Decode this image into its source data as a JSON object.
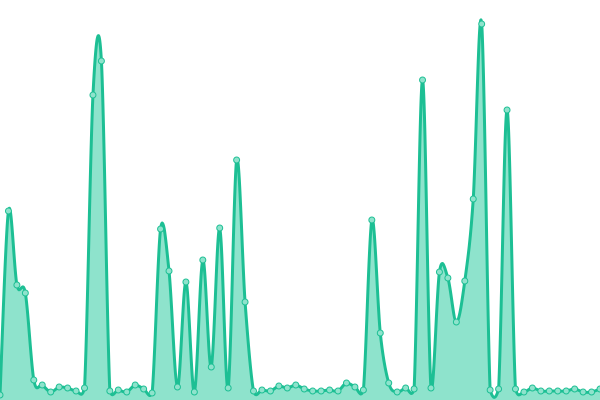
{
  "chart_data": {
    "type": "area",
    "values": [
      5,
      189,
      115,
      107,
      20,
      15,
      8,
      13,
      12,
      9,
      12,
      305,
      339,
      9,
      10,
      8,
      15,
      11,
      7,
      171,
      129,
      13,
      118,
      8,
      140,
      33,
      172,
      12,
      240,
      98,
      9,
      10,
      9,
      14,
      12,
      15,
      11,
      9,
      9,
      10,
      9,
      17,
      13,
      10,
      180,
      67,
      17,
      8,
      12,
      11,
      320,
      12,
      128,
      122,
      78,
      119,
      201,
      376,
      10,
      11,
      290,
      11,
      8,
      12,
      9,
      9,
      9,
      9,
      11,
      8,
      8,
      11
    ],
    "color": "#1dbf94",
    "fill_color": "#8ee3cc",
    "ylim": [
      0,
      400
    ],
    "grid": false
  }
}
